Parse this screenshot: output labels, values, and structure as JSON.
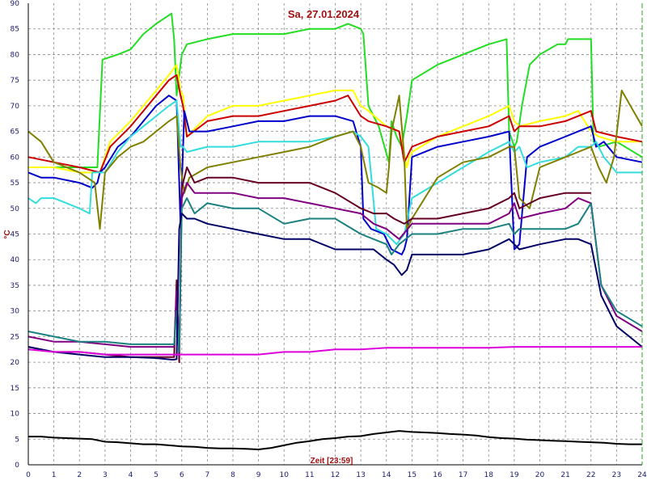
{
  "chart_data": {
    "type": "line",
    "title": "Sa, 27.01.2024",
    "xlabel": "Zeit [23:59]",
    "ylabel": "°C",
    "xlim": [
      0,
      24
    ],
    "ylim": [
      0,
      90
    ],
    "x_ticks": [
      0,
      1,
      2,
      3,
      4,
      5,
      6,
      7,
      8,
      9,
      10,
      11,
      12,
      13,
      14,
      15,
      16,
      17,
      18,
      19,
      20,
      21,
      22,
      23,
      24
    ],
    "y_ticks": [
      0,
      5,
      10,
      15,
      20,
      25,
      30,
      35,
      40,
      45,
      50,
      55,
      60,
      65,
      70,
      75,
      80,
      85,
      90
    ],
    "grid": true,
    "series": [
      {
        "color": "#22dd22",
        "x": [
          0,
          1,
          2,
          2.7,
          2.9,
          3.5,
          4,
          4.5,
          5,
          5.6,
          5.7,
          5.8,
          5.9,
          6.0,
          6.2,
          7,
          8,
          9,
          10,
          11,
          12,
          12.5,
          13,
          13.1,
          13.3,
          13.7,
          14.1,
          14.2,
          14.4,
          14.6,
          14.8,
          15,
          16,
          17,
          18,
          18.7,
          18.8,
          19,
          19.1,
          19.3,
          19.6,
          20,
          20.7,
          21,
          21.1,
          22,
          22.1,
          22.3,
          23,
          24
        ],
        "y": [
          58,
          58,
          58,
          58,
          79,
          80,
          81,
          84,
          86,
          88,
          83,
          72,
          76,
          80,
          82,
          83,
          84,
          84,
          84,
          85,
          85,
          86,
          85,
          84,
          70,
          66,
          59,
          67,
          64,
          62,
          68,
          75,
          78,
          80,
          82,
          83,
          65,
          62,
          63,
          70,
          78,
          80,
          82,
          82,
          83,
          83,
          63,
          62,
          63,
          60
        ]
      },
      {
        "color": "#ffff00",
        "x": [
          0,
          1,
          2,
          2.8,
          3.2,
          4,
          4.5,
          5,
          5.5,
          5.8,
          5.95,
          6.05,
          6.2,
          7,
          8,
          9,
          10,
          11,
          12,
          12.7,
          13,
          13.3,
          14,
          14.5,
          14.8,
          14.9,
          15,
          16,
          17,
          18,
          18.8,
          19,
          19.2,
          20,
          21,
          21.5,
          22,
          22.3,
          23,
          24
        ],
        "y": [
          58,
          58,
          57,
          57,
          63,
          67,
          70,
          73,
          76,
          78,
          73,
          72,
          64,
          68,
          70,
          70,
          71,
          72,
          73,
          73,
          70,
          69,
          66,
          65,
          58,
          60,
          61,
          64,
          66,
          68,
          70,
          67,
          66,
          67,
          68,
          69,
          65,
          64,
          63,
          63
        ]
      },
      {
        "color": "#cc0000",
        "x": [
          0,
          1,
          2,
          2.8,
          3.2,
          4,
          4.5,
          5,
          5.5,
          5.8,
          5.95,
          6.05,
          6.2,
          7,
          8,
          9,
          10,
          11,
          12,
          12.5,
          13,
          13.3,
          14,
          14.5,
          14.7,
          14.8,
          15,
          16,
          17,
          18,
          18.8,
          19,
          19.2,
          20,
          21,
          21.5,
          22,
          22.2,
          23,
          24
        ],
        "y": [
          60,
          59,
          58,
          57,
          62,
          66,
          69,
          72,
          75,
          76,
          72,
          70,
          64,
          67,
          68,
          68,
          69,
          70,
          71,
          72,
          68,
          67,
          66,
          65,
          59,
          60,
          62,
          64,
          65,
          66,
          68,
          65,
          66,
          66,
          67,
          68,
          69,
          65,
          64,
          63
        ]
      },
      {
        "color": "#0000cc",
        "x": [
          0,
          0.5,
          1,
          2,
          2.5,
          2.7,
          2.8,
          3,
          3.5,
          4,
          4.5,
          5,
          5.5,
          5.8,
          5.95,
          6.1,
          6.3,
          7,
          8,
          9,
          10,
          11,
          12,
          12.7,
          13,
          13.1,
          13.4,
          13.9,
          14.1,
          14.2,
          14.6,
          14.7,
          14.8,
          15,
          16,
          17,
          18,
          18.8,
          19,
          19.2,
          19.5,
          20,
          21,
          21.5,
          22,
          22.2,
          22.5,
          23,
          24
        ],
        "y": [
          57,
          56,
          56,
          55,
          54,
          55,
          57,
          58,
          62,
          64,
          67,
          70,
          72,
          71,
          47,
          69,
          65,
          65,
          66,
          67,
          67,
          68,
          68,
          67,
          62,
          48,
          46,
          45,
          43,
          42,
          41,
          42,
          44,
          60,
          62,
          63,
          64,
          65,
          42,
          43,
          60,
          62,
          64,
          65,
          66,
          62,
          63,
          60,
          59
        ]
      },
      {
        "color": "#33dddd",
        "x": [
          0,
          0.3,
          0.5,
          1,
          1.5,
          2,
          2.4,
          2.5,
          3,
          3.5,
          4,
          4.5,
          5,
          5.5,
          5.8,
          5.95,
          6.05,
          6.2,
          7,
          8,
          9,
          10,
          11,
          12,
          12.7,
          13,
          13.3,
          13.6,
          14,
          14.4,
          14.7,
          15,
          16,
          17,
          18,
          18.8,
          19,
          19.2,
          19.5,
          20,
          21,
          21.5,
          22,
          22.2,
          22.5,
          23,
          24
        ],
        "y": [
          52,
          51,
          52,
          52,
          51,
          50,
          49,
          57,
          57,
          61,
          64,
          66,
          68,
          70,
          71,
          62,
          62,
          61,
          62,
          62,
          63,
          63,
          63,
          64,
          65,
          64,
          62,
          46,
          45,
          43,
          45,
          52,
          55,
          58,
          61,
          63,
          61,
          62,
          58,
          59,
          60,
          62,
          62,
          63,
          60,
          57,
          57
        ]
      },
      {
        "color": "#808000",
        "x": [
          0,
          0.5,
          1,
          2,
          2.6,
          2.8,
          3,
          3.5,
          4,
          4.5,
          5,
          5.5,
          5.8,
          5.95,
          6.1,
          6.3,
          7,
          8,
          9,
          10,
          11,
          12,
          12.7,
          13,
          13.3,
          13.7,
          14,
          14.1,
          14.2,
          14.5,
          14.7,
          14.8,
          15,
          16,
          17,
          18,
          18.8,
          19,
          19.2,
          19.6,
          20,
          21,
          21.5,
          22,
          22.3,
          22.6,
          22.9,
          23.2,
          24
        ],
        "y": [
          65,
          63,
          59,
          57,
          55,
          46,
          57,
          60,
          62,
          63,
          65,
          67,
          68,
          58,
          53,
          56,
          58,
          59,
          60,
          61,
          62,
          64,
          65,
          62,
          55,
          54,
          53,
          58,
          65,
          72,
          60,
          46,
          48,
          56,
          59,
          60,
          62,
          62,
          52,
          50,
          58,
          60,
          61,
          62,
          58,
          55,
          60,
          73,
          66
        ]
      },
      {
        "color": "#660022",
        "x": [
          0,
          1,
          2,
          3,
          4,
          5,
          5.7,
          5.8,
          5.9,
          6.0,
          6.2,
          6.5,
          7,
          8,
          9,
          10,
          11,
          12,
          13,
          13.5,
          14,
          14.3,
          14.7,
          15,
          16,
          17,
          18,
          18.8,
          19,
          19.2,
          20,
          21,
          21.5,
          22
        ],
        "y": [
          23,
          22,
          22,
          21.5,
          21,
          21,
          21,
          36,
          20,
          54,
          58,
          55,
          56,
          56,
          55,
          55,
          55,
          53,
          50,
          49,
          49,
          48,
          47,
          48,
          48,
          49,
          50,
          52,
          53,
          50,
          52,
          53,
          53,
          53
        ]
      },
      {
        "color": "#800080",
        "x": [
          0,
          1,
          2,
          3,
          4,
          5,
          5.7,
          5.8,
          5.9,
          6.0,
          6.2,
          6.5,
          7,
          8,
          9,
          10,
          11,
          12,
          13,
          13.5,
          14,
          14.5,
          15,
          16,
          17,
          18,
          18.8,
          19,
          19.2,
          20,
          21,
          21.5,
          22,
          22.4,
          23,
          24
        ],
        "y": [
          25,
          24,
          24,
          23.5,
          23,
          23,
          23,
          34,
          21,
          52,
          55,
          53,
          53,
          53,
          52,
          52,
          51,
          50,
          49,
          47,
          46,
          44,
          47,
          47,
          47,
          47,
          49,
          51,
          48,
          49,
          50,
          52,
          51,
          35,
          29,
          26
        ]
      },
      {
        "color": "#1a8080",
        "x": [
          0,
          1,
          2,
          3,
          4,
          5,
          5.7,
          5.8,
          5.9,
          6.0,
          6.2,
          6.5,
          7,
          8,
          9,
          10,
          11,
          12,
          13,
          13.5,
          14,
          14.2,
          14.5,
          15,
          16,
          17,
          18,
          18.8,
          19,
          19.2,
          20,
          21,
          21.5,
          22,
          22.4,
          23,
          24
        ],
        "y": [
          26,
          25,
          24,
          24,
          23.5,
          23.5,
          23.5,
          30,
          22,
          50,
          52,
          49,
          51,
          50,
          50,
          47,
          48,
          48,
          45,
          44,
          43,
          41,
          43,
          45,
          45,
          46,
          46,
          47,
          45,
          46,
          46,
          46,
          47,
          51,
          35,
          30,
          27
        ]
      },
      {
        "color": "#000066",
        "x": [
          0,
          1,
          2,
          3,
          4,
          5,
          5.6,
          5.7,
          5.8,
          5.9,
          6.0,
          6.2,
          6.5,
          7,
          8,
          9,
          10,
          11,
          12,
          13,
          13.5,
          14,
          14.3,
          14.6,
          14.8,
          15,
          16,
          17,
          18,
          18.8,
          19,
          19.2,
          20,
          21,
          21.5,
          22,
          22.4,
          23,
          24
        ],
        "y": [
          23,
          22,
          21.5,
          21,
          21,
          20.8,
          20.5,
          20.5,
          20.6,
          46,
          49,
          48,
          48,
          47,
          46,
          45,
          44,
          44,
          42,
          42,
          42,
          40,
          39,
          37,
          38,
          41,
          41,
          41,
          42,
          44,
          43,
          42,
          43,
          44,
          44,
          43,
          33,
          27,
          23
        ]
      },
      {
        "color": "#dd00dd",
        "x": [
          0,
          1,
          2,
          3,
          4,
          5,
          5.9,
          6.0,
          7,
          8,
          9,
          10,
          11,
          12,
          13,
          14,
          15,
          16,
          17,
          18,
          19,
          20,
          21,
          22,
          23,
          24
        ],
        "y": [
          22.5,
          22,
          22,
          21.5,
          21.5,
          21.5,
          21.5,
          21.5,
          21.5,
          21.5,
          21.5,
          22,
          22,
          22.5,
          22.5,
          22.8,
          22.8,
          22.8,
          22.8,
          22.8,
          23,
          23,
          23,
          23,
          23,
          23
        ]
      },
      {
        "color": "#000000",
        "x": [
          0,
          0.5,
          1,
          1.5,
          2,
          2.5,
          3,
          3.5,
          4,
          4.5,
          5,
          5.5,
          6,
          6.5,
          7,
          7.5,
          8,
          8.5,
          9,
          9.5,
          10,
          10.5,
          11,
          11.5,
          12,
          12.5,
          13,
          13.5,
          14,
          14.5,
          15,
          15.5,
          16,
          16.5,
          17,
          17.5,
          18,
          18.5,
          19,
          19.5,
          20,
          20.5,
          21,
          21.5,
          22,
          22.5,
          23,
          23.5,
          24
        ],
        "y": [
          5.5,
          5.5,
          5.3,
          5.2,
          5.1,
          5,
          4.5,
          4.4,
          4.2,
          4,
          4,
          3.8,
          3.6,
          3.5,
          3.3,
          3.2,
          3.2,
          3.1,
          3,
          3.3,
          3.8,
          4.3,
          4.6,
          5,
          5.2,
          5.5,
          5.6,
          6,
          6.3,
          6.6,
          6.4,
          6.3,
          6.2,
          6,
          5.9,
          5.7,
          5.4,
          5.2,
          5.1,
          4.9,
          4.8,
          4.7,
          4.6,
          4.5,
          4.4,
          4.3,
          4.1,
          4,
          4
        ]
      }
    ]
  }
}
